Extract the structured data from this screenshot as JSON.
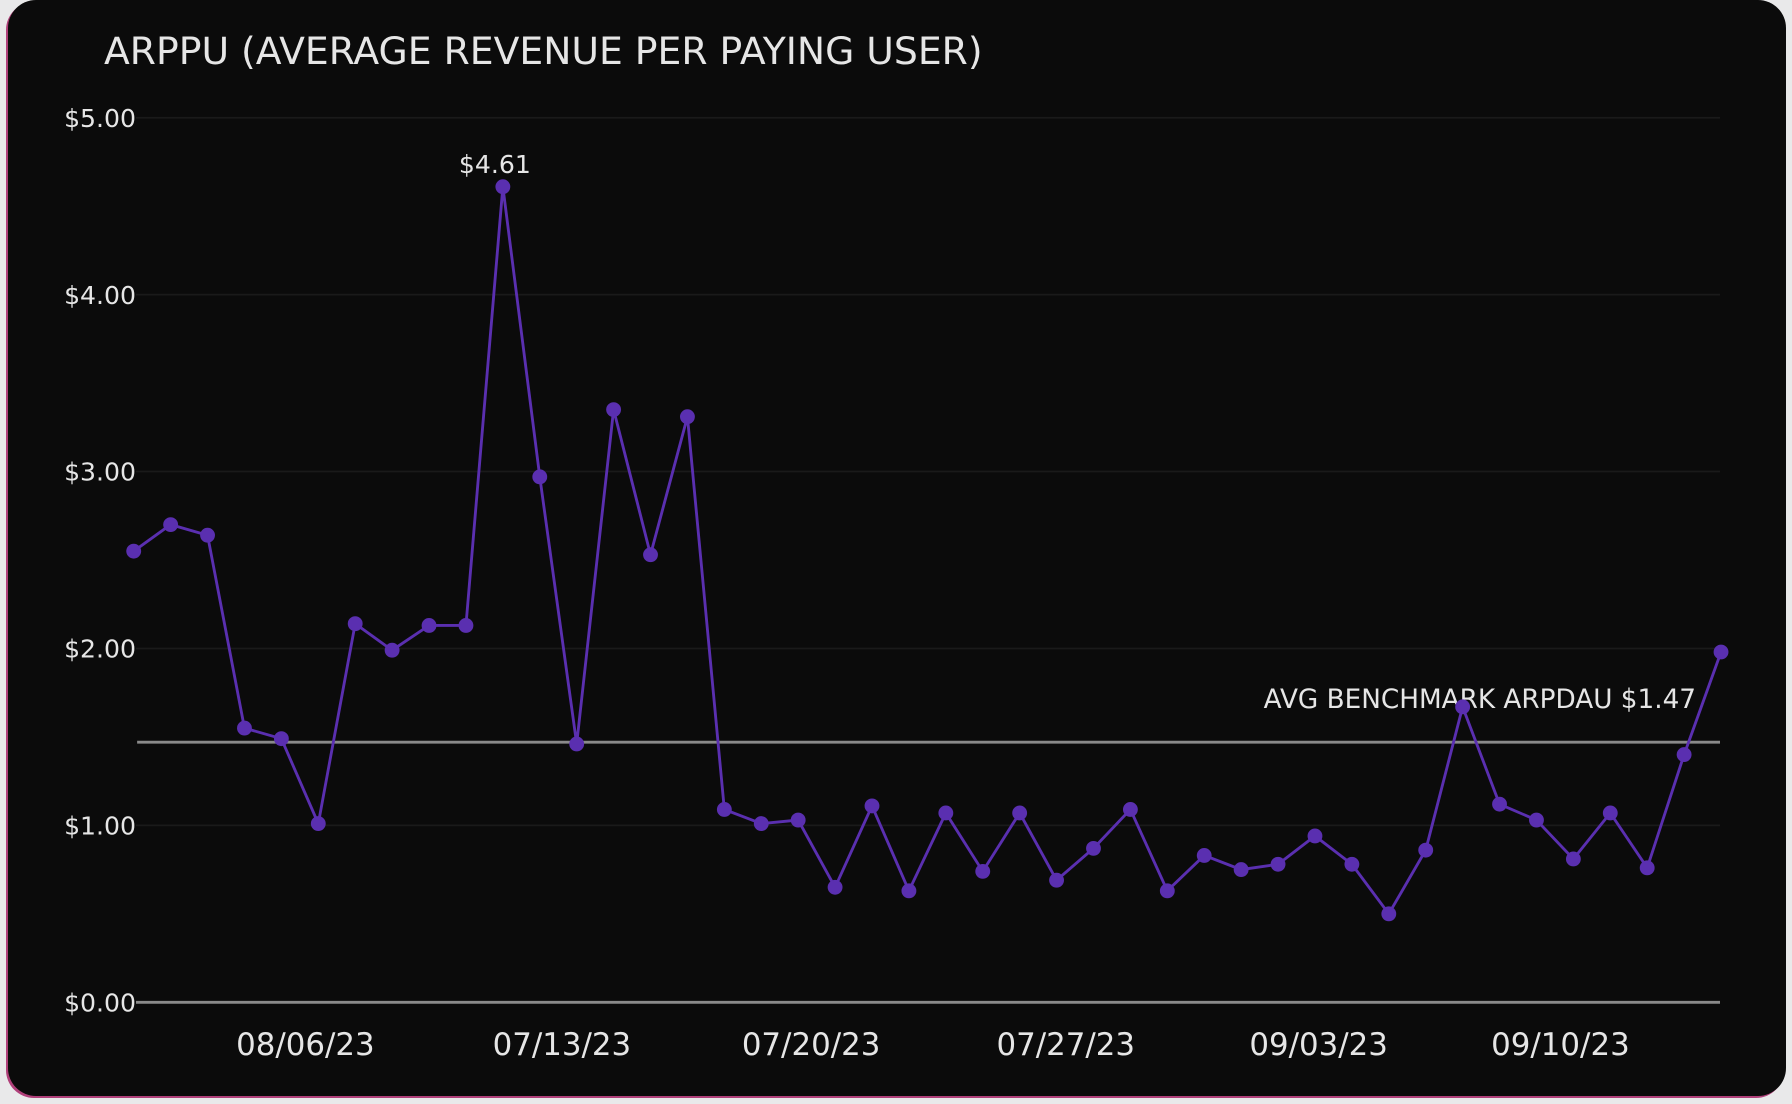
{
  "chart_data": {
    "type": "line",
    "title": "ARPPU (AVERAGE REVENUE PER PAYING USER)",
    "xlabel": "",
    "ylabel": "",
    "ylim": [
      0,
      5
    ],
    "y_ticks": [
      "$0.00",
      "$1.00",
      "$2.00",
      "$3.00",
      "$4.00",
      "$5.00"
    ],
    "x_tick_labels": [
      "08/06/23",
      "07/13/23",
      "07/20/23",
      "07/27/23",
      "09/03/23",
      "09/10/23"
    ],
    "grid": true,
    "values": [
      2.55,
      2.7,
      2.64,
      1.55,
      1.49,
      1.01,
      2.14,
      1.99,
      2.13,
      2.13,
      4.61,
      2.97,
      1.46,
      3.35,
      2.53,
      3.31,
      1.09,
      1.01,
      1.03,
      0.65,
      1.11,
      0.63,
      1.07,
      0.74,
      1.07,
      0.69,
      0.87,
      1.09,
      0.63,
      0.83,
      0.75,
      0.78,
      0.94,
      0.78,
      0.5,
      0.86,
      1.67,
      1.12,
      1.03,
      0.81,
      1.07,
      0.76,
      1.4,
      1.98
    ],
    "peak_label": "$4.61",
    "benchmark": {
      "value": 1.47,
      "label": "AVG BENCHMARK ARPDAU $1.47"
    },
    "colors": {
      "line": "#5a2fb0",
      "background": "#0b0b0b",
      "benchmark": "#8a8a8a",
      "grid": "#1a1a1a",
      "text": "#e6e6e6"
    }
  }
}
